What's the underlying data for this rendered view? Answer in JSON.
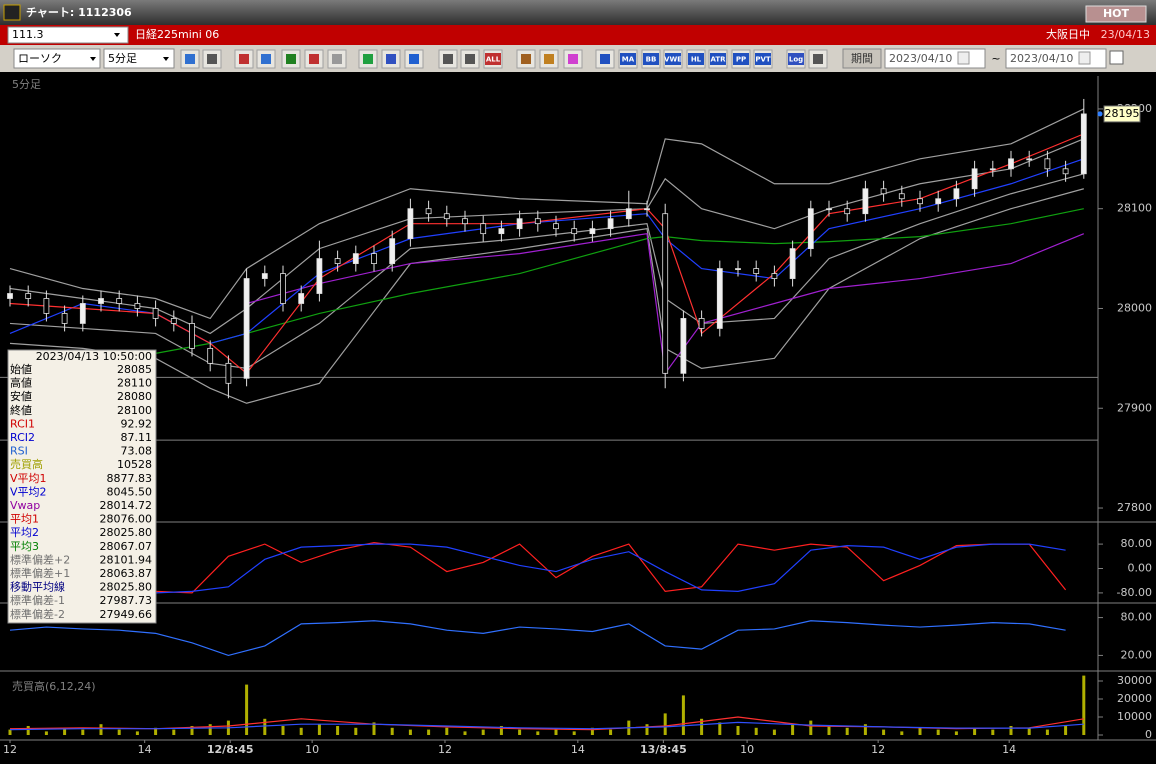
{
  "window": {
    "title": "チャート: 1112306",
    "hot": "HOT"
  },
  "symbol_bar": {
    "code": "111.3",
    "name": "日経225mini 06",
    "session": "大阪日中",
    "date": "23/04/13"
  },
  "toolbar": {
    "chart_type": "ローソク",
    "interval": "5分足",
    "icon_labels": [
      "ALL",
      "MA",
      "BB",
      "VWE",
      "HL",
      "ATR",
      "PP",
      "PVT",
      "Log"
    ],
    "period_button": "期間",
    "date_from": "2023/04/10",
    "separator": "~",
    "date_to": "2023/04/10"
  },
  "info_panel": {
    "time": "2023/04/13 10:50:00",
    "rows": [
      {
        "label": "始値",
        "value": "28085",
        "color": "#000000"
      },
      {
        "label": "高値",
        "value": "28110",
        "color": "#000000"
      },
      {
        "label": "安値",
        "value": "28080",
        "color": "#000000"
      },
      {
        "label": "終値",
        "value": "28100",
        "color": "#000000"
      },
      {
        "label": "RCI1",
        "value": "92.92",
        "color": "#d00000"
      },
      {
        "label": "RCI2",
        "value": "87.11",
        "color": "#0000d0"
      },
      {
        "label": "RSI",
        "value": "73.08",
        "color": "#2060d0"
      },
      {
        "label": "売買高",
        "value": "10528",
        "color": "#a0a000"
      },
      {
        "label": "V平均1",
        "value": "8877.83",
        "color": "#d00000"
      },
      {
        "label": "V平均2",
        "value": "8045.50",
        "color": "#0000d0"
      },
      {
        "label": "Vwap",
        "value": "28014.72",
        "color": "#9000a0"
      },
      {
        "label": "平均1",
        "value": "28076.00",
        "color": "#d00000"
      },
      {
        "label": "平均2",
        "value": "28025.80",
        "color": "#0000d0"
      },
      {
        "label": "平均3",
        "value": "28067.07",
        "color": "#008000"
      },
      {
        "label": "標準偏差+2",
        "value": "28101.94",
        "color": "#707070"
      },
      {
        "label": "標準偏差+1",
        "value": "28063.87",
        "color": "#707070"
      },
      {
        "label": "移動平均線",
        "value": "28025.80",
        "color": "#000080"
      },
      {
        "label": "標準偏差-1",
        "value": "27987.73",
        "color": "#707070"
      },
      {
        "label": "標準偏差-2",
        "value": "27949.66",
        "color": "#707070"
      }
    ]
  },
  "x_ticks": [
    {
      "value": 0,
      "label": "12"
    },
    {
      "value": 7.4,
      "label": "14"
    },
    {
      "value": 12.1,
      "label": "12/8:45"
    },
    {
      "value": 16.6,
      "label": "10"
    },
    {
      "value": 23.9,
      "label": "12"
    },
    {
      "value": 31.2,
      "label": "14"
    },
    {
      "value": 35.9,
      "label": "13/8:45"
    },
    {
      "value": 40.5,
      "label": "10"
    },
    {
      "value": 47.7,
      "label": "12"
    },
    {
      "value": 54.9,
      "label": "14"
    }
  ],
  "chart_data": [
    {
      "type": "candlestick",
      "label": "5分足",
      "ylim": [
        27790,
        28230
      ],
      "yticks": [
        28200,
        28100,
        28000,
        27900,
        27800
      ],
      "open": [
        28010,
        28015,
        28010,
        27995,
        27985,
        28005,
        28010,
        28005,
        28000,
        27990,
        27985,
        27960,
        27945,
        27930,
        28030,
        28035,
        28005,
        28015,
        28050,
        28045,
        28055,
        28045,
        28070,
        28100,
        28095,
        28090,
        28085,
        28075,
        28080,
        28090,
        28085,
        28080,
        28075,
        28080,
        28090,
        28100,
        28095,
        27935,
        27990,
        27980,
        28040,
        28040,
        28035,
        28030,
        28060,
        28100,
        28100,
        28095,
        28120,
        28115,
        28110,
        28105,
        28110,
        28120,
        28140,
        28140,
        28150,
        28150,
        28140,
        28135
      ],
      "high": [
        28023,
        28023,
        28018,
        28003,
        28013,
        28018,
        28018,
        28013,
        28008,
        27998,
        27993,
        27968,
        27953,
        28040,
        28043,
        28043,
        28023,
        28068,
        28058,
        28063,
        28063,
        28078,
        28110,
        28108,
        28103,
        28098,
        28093,
        28088,
        28098,
        28098,
        28093,
        28088,
        28088,
        28098,
        28118,
        28108,
        28105,
        27998,
        27998,
        28048,
        28048,
        28048,
        28043,
        28068,
        28108,
        28108,
        28108,
        28128,
        28128,
        28123,
        28118,
        28118,
        28128,
        28148,
        28148,
        28158,
        28158,
        28158,
        28148,
        28210
      ],
      "low": [
        28002,
        28002,
        27987,
        27977,
        27977,
        27997,
        27997,
        27992,
        27982,
        27977,
        27952,
        27937,
        27910,
        27922,
        28022,
        27997,
        27997,
        28007,
        28037,
        28037,
        28037,
        28037,
        28062,
        28087,
        28082,
        28077,
        28067,
        28067,
        28072,
        28077,
        28072,
        28067,
        28067,
        28072,
        28082,
        28092,
        27920,
        27927,
        27972,
        27972,
        28032,
        28027,
        28022,
        28022,
        28052,
        28092,
        28087,
        28087,
        28107,
        28102,
        28097,
        28097,
        28102,
        28112,
        28132,
        28132,
        28142,
        28132,
        28127,
        28130
      ],
      "close": [
        28015,
        28010,
        27995,
        27985,
        28005,
        28010,
        28005,
        28000,
        27990,
        27985,
        27960,
        27945,
        27925,
        28030,
        28035,
        28005,
        28015,
        28050,
        28045,
        28055,
        28045,
        28070,
        28100,
        28095,
        28090,
        28085,
        28075,
        28080,
        28090,
        28085,
        28080,
        28075,
        28080,
        28090,
        28100,
        28100,
        27935,
        27990,
        27980,
        28040,
        28040,
        28035,
        28030,
        28060,
        28100,
        28100,
        28095,
        28120,
        28115,
        28110,
        28105,
        28110,
        28120,
        28140,
        28140,
        28150,
        28150,
        28140,
        28135,
        28195
      ],
      "reference_lines": [
        27931,
        27868
      ],
      "line_x": [
        0,
        4,
        8,
        11,
        13,
        17,
        22,
        28,
        35,
        36,
        38,
        42,
        45,
        50,
        55,
        59
      ],
      "series": [
        {
          "color": "#a0a0a0",
          "values": [
            28040,
            28020,
            28010,
            27990,
            28040,
            28085,
            28120,
            28110,
            28105,
            28170,
            28165,
            28125,
            28125,
            28150,
            28165,
            28200
          ]
        },
        {
          "color": "#a0a0a0",
          "values": [
            28020,
            28010,
            28000,
            27975,
            28000,
            28060,
            28090,
            28095,
            28100,
            28130,
            28100,
            28080,
            28100,
            28125,
            28140,
            28170
          ]
        },
        {
          "color": "#a0a0a0",
          "values": [
            27985,
            27980,
            27975,
            27945,
            27940,
            27985,
            28060,
            28070,
            28085,
            28010,
            27985,
            27990,
            28050,
            28085,
            28115,
            28135
          ]
        },
        {
          "color": "#a0a0a0",
          "values": [
            27965,
            27960,
            27950,
            27920,
            27905,
            27925,
            28045,
            28060,
            28080,
            27960,
            27940,
            27950,
            28020,
            28070,
            28100,
            28120
          ]
        },
        {
          "color": "#10a010",
          "values": [
            null,
            null,
            27955,
            27965,
            27975,
            27995,
            28015,
            28035,
            28070,
            28072,
            28068,
            28065,
            28067,
            28072,
            28085,
            28100
          ]
        },
        {
          "color": "#a020d0",
          "values": [
            null,
            null,
            null,
            null,
            28005,
            28025,
            28045,
            28055,
            28075,
            27935,
            27985,
            28005,
            28020,
            28030,
            28045,
            28075
          ]
        },
        {
          "color": "#2040ff",
          "values": [
            27975,
            28005,
            27995,
            27965,
            27975,
            28035,
            28070,
            28085,
            28095,
            28070,
            28040,
            28030,
            28080,
            28100,
            28125,
            28150
          ]
        },
        {
          "color": "#ff3030",
          "values": [
            28005,
            28000,
            27995,
            27965,
            27935,
            28030,
            28085,
            28085,
            28100,
            28080,
            27975,
            28035,
            28095,
            28110,
            28145,
            28175
          ]
        }
      ]
    },
    {
      "type": "line",
      "ylim": [
        -100,
        100
      ],
      "yticks": [
        {
          "value": 80,
          "label": "80.00"
        },
        {
          "value": 0,
          "label": "0.00"
        },
        {
          "value": -80,
          "label": "-80.00"
        }
      ],
      "x": [
        0,
        2,
        4,
        6,
        8,
        10,
        12,
        14,
        16,
        18,
        20,
        22,
        24,
        26,
        28,
        30,
        32,
        34,
        36,
        38,
        40,
        42,
        44,
        46,
        48,
        50,
        52,
        54,
        56,
        58
      ],
      "series": [
        {
          "color": "#ff2020",
          "values": [
            -80,
            -85,
            -80,
            -85,
            -75,
            -80,
            40,
            80,
            20,
            60,
            85,
            70,
            -10,
            20,
            80,
            -30,
            40,
            80,
            -75,
            -60,
            80,
            60,
            80,
            70,
            -40,
            10,
            75,
            80,
            80,
            -70
          ]
        },
        {
          "color": "#2040ff",
          "values": [
            -75,
            -80,
            -80,
            -82,
            -80,
            -75,
            -60,
            30,
            70,
            75,
            80,
            80,
            70,
            40,
            10,
            -10,
            30,
            55,
            -10,
            -70,
            -75,
            -50,
            60,
            75,
            70,
            30,
            70,
            80,
            80,
            60
          ]
        }
      ]
    },
    {
      "type": "line",
      "ylim": [
        0,
        100
      ],
      "yticks": [
        {
          "value": 80,
          "label": "80.00"
        },
        {
          "value": 20,
          "label": "20.00"
        }
      ],
      "x": [
        0,
        2,
        4,
        6,
        8,
        10,
        12,
        14,
        16,
        18,
        20,
        22,
        24,
        26,
        28,
        30,
        32,
        34,
        36,
        38,
        40,
        42,
        44,
        46,
        48,
        50,
        52,
        54,
        56,
        58
      ],
      "series": [
        {
          "color": "#3070ff",
          "values": [
            60,
            65,
            62,
            60,
            55,
            40,
            20,
            35,
            70,
            72,
            75,
            70,
            60,
            55,
            65,
            62,
            58,
            70,
            35,
            30,
            60,
            62,
            75,
            72,
            68,
            65,
            68,
            72,
            70,
            60
          ]
        }
      ]
    },
    {
      "type": "bar",
      "label": "売買高(6,12,24)",
      "ylim": [
        0,
        30000
      ],
      "yticks": [
        30000,
        20000,
        10000,
        0
      ],
      "color": "#b0b000",
      "values": [
        3000,
        5000,
        2000,
        4000,
        3000,
        6000,
        3000,
        2000,
        4000,
        3000,
        5000,
        6000,
        8000,
        28000,
        9000,
        5000,
        4000,
        6000,
        5000,
        4000,
        7000,
        4000,
        3000,
        3000,
        4000,
        2000,
        3000,
        5000,
        3000,
        2000,
        3000,
        2000,
        4000,
        3000,
        8000,
        6000,
        12000,
        22000,
        9000,
        7000,
        5000,
        4000,
        3000,
        6000,
        8000,
        5000,
        4000,
        6000,
        3000,
        2000,
        4000,
        3000,
        2000,
        4000,
        3000,
        5000,
        4000,
        3000,
        5000,
        33000
      ],
      "line_x": [
        0,
        4,
        8,
        12,
        16,
        20,
        24,
        28,
        32,
        36,
        40,
        44,
        48,
        52,
        56,
        59
      ],
      "series": [
        {
          "color": "#ff3030",
          "values": [
            3500,
            4000,
            3500,
            5000,
            9000,
            6000,
            4500,
            3500,
            3000,
            5000,
            10000,
            5000,
            4500,
            3500,
            4000,
            9000
          ]
        },
        {
          "color": "#3050ff",
          "values": [
            3000,
            3500,
            3500,
            4000,
            6000,
            6000,
            5000,
            4000,
            3500,
            4500,
            7000,
            5500,
            4500,
            3800,
            3800,
            6000
          ]
        }
      ]
    }
  ]
}
